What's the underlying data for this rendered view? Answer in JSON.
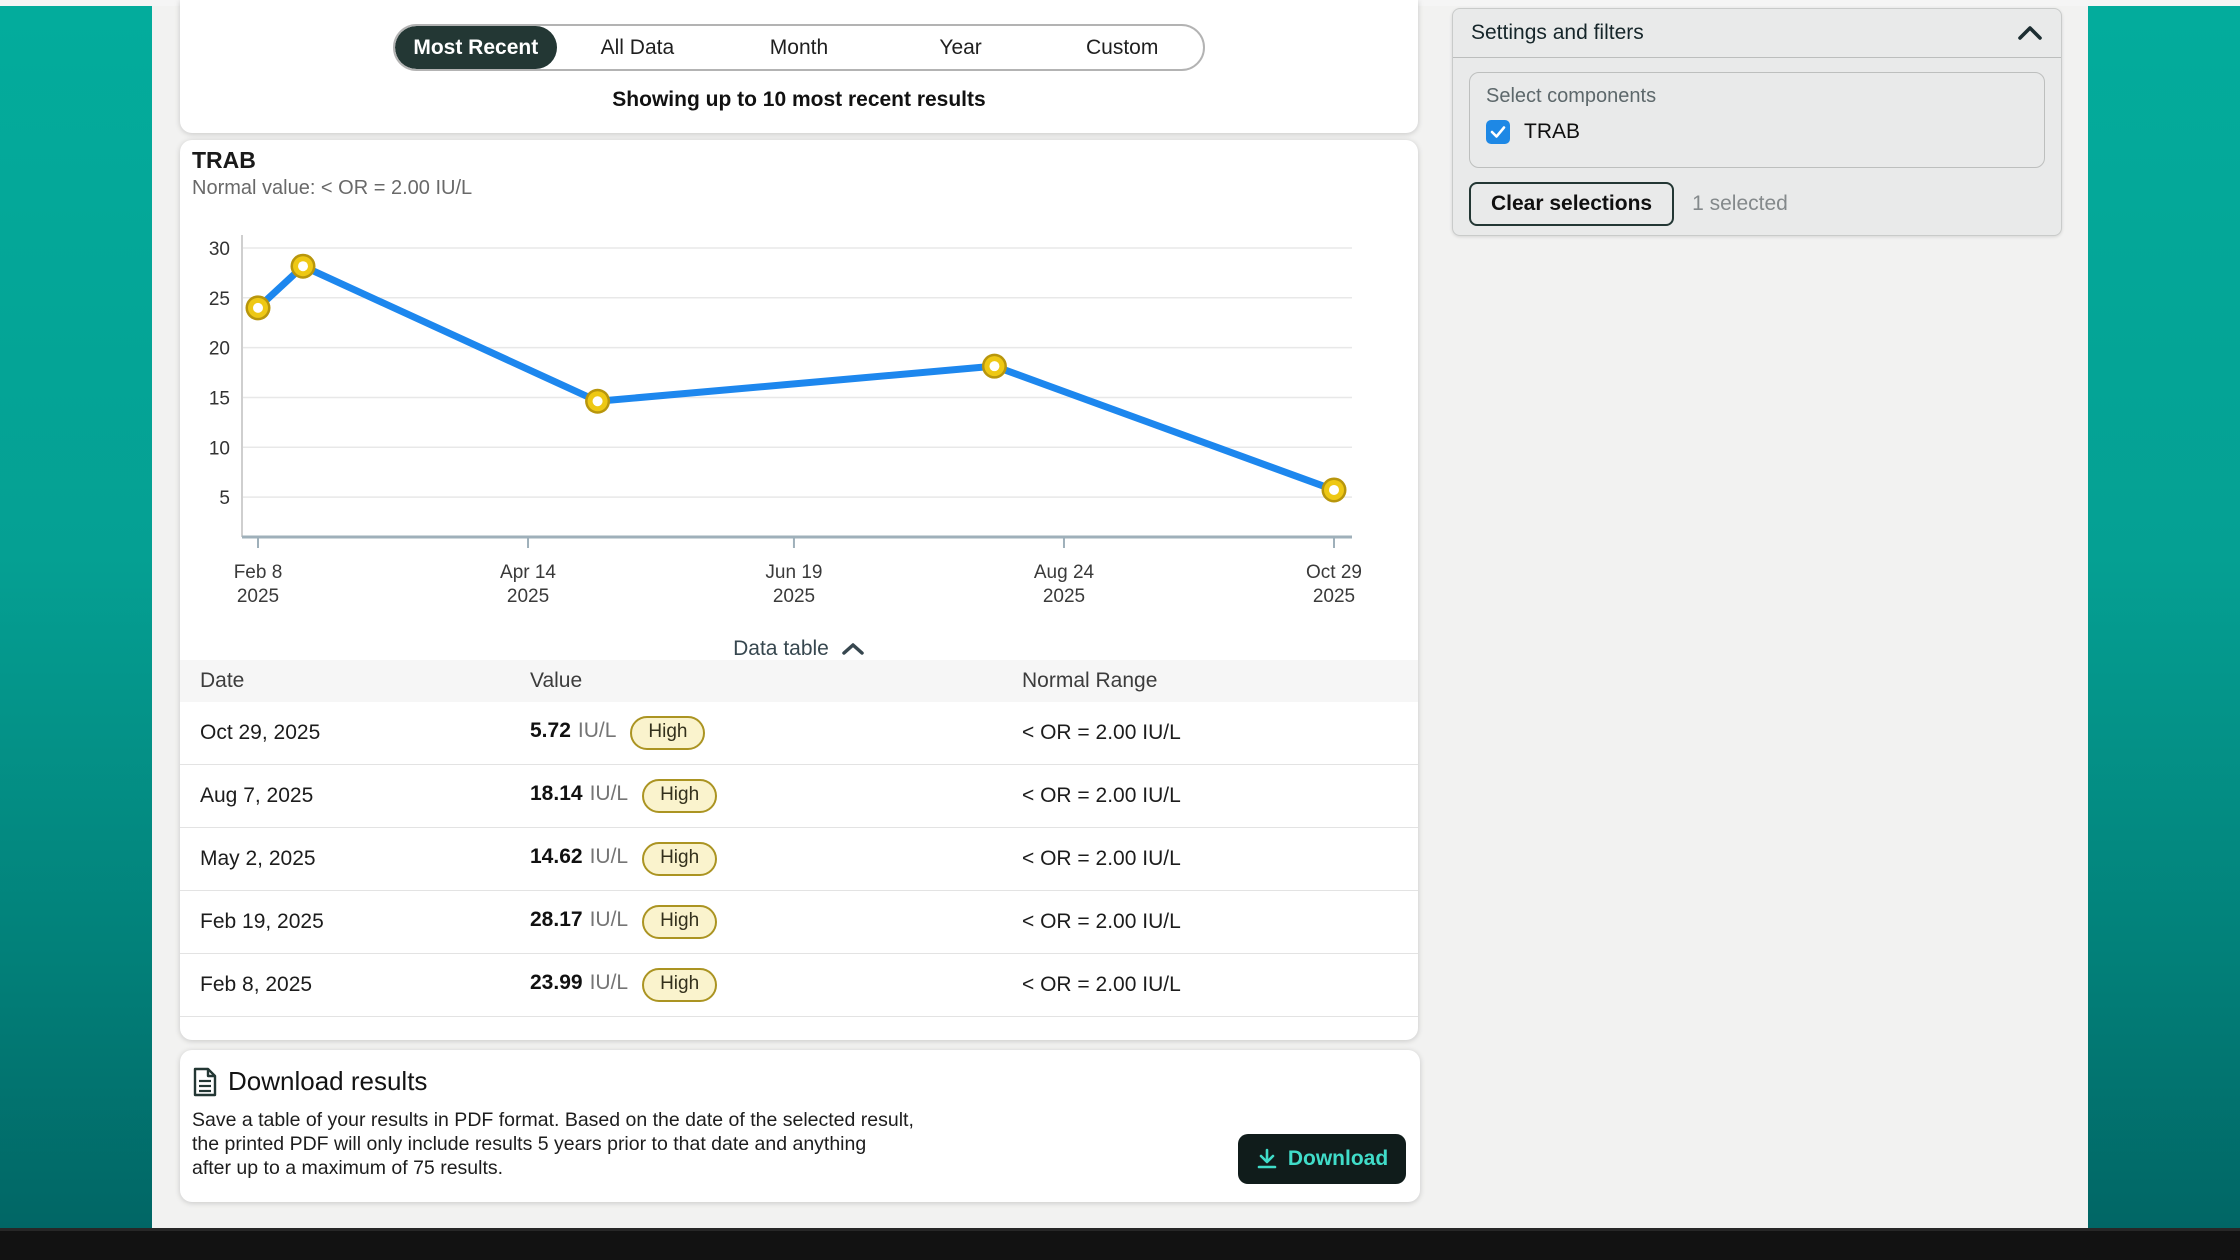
{
  "colors": {
    "brand_teal": "#03ac9c",
    "brand_teal_dark": "#016665",
    "selected_tab_bg": "#233734",
    "line_blue": "#1d87ee",
    "marker_gold": "#eec814",
    "marker_gold_dark": "#b8960c",
    "high_badge_bg": "#faf3cd",
    "high_badge_border": "#ab9422",
    "checkbox_blue": "#1e88e5",
    "download_button_bg": "#101c1b",
    "download_button_text": "#40dcc9"
  },
  "tabs": {
    "items": [
      "Most Recent",
      "All Data",
      "Month",
      "Year",
      "Custom"
    ],
    "selected_index": 0,
    "subtitle": "Showing up to 10 most recent results"
  },
  "chart_card": {
    "title": "TRAB",
    "normal_value": "Normal value: < OR = 2.00 IU/L",
    "data_table_toggle": "Data table"
  },
  "chart_data": {
    "type": "line",
    "title": "TRAB",
    "unit": "IU/L",
    "xlabel": "",
    "ylabel": "",
    "ylim": [
      1,
      31.3
    ],
    "y_ticks": [
      5,
      10,
      15,
      20,
      25,
      30
    ],
    "x_domain_days": [
      0,
      263
    ],
    "x_ticks": [
      {
        "label": "Feb 8",
        "year": "2025",
        "day": 0
      },
      {
        "label": "Apr 14",
        "year": "2025",
        "day": 66
      },
      {
        "label": "Jun 19",
        "year": "2025",
        "day": 131
      },
      {
        "label": "Aug 24",
        "year": "2025",
        "day": 197
      },
      {
        "label": "Oct 29",
        "year": "2025",
        "day": 263
      }
    ],
    "points": [
      {
        "date": "Feb 8, 2025",
        "day": 0,
        "value": 23.99
      },
      {
        "date": "Feb 19, 2025",
        "day": 11,
        "value": 28.17
      },
      {
        "date": "May 2, 2025",
        "day": 83,
        "value": 14.62
      },
      {
        "date": "Aug 7, 2025",
        "day": 180,
        "value": 18.14
      },
      {
        "date": "Oct 29, 2025",
        "day": 263,
        "value": 5.72
      }
    ],
    "grid": true,
    "legend": false
  },
  "data_table": {
    "columns": [
      "Date",
      "Value",
      "Normal Range"
    ],
    "rows": [
      {
        "date": "Oct 29, 2025",
        "value": "5.72",
        "unit": "IU/L",
        "flag": "High",
        "normal_range": "< OR = 2.00 IU/L"
      },
      {
        "date": "Aug 7, 2025",
        "value": "18.14",
        "unit": "IU/L",
        "flag": "High",
        "normal_range": "< OR = 2.00 IU/L"
      },
      {
        "date": "May 2, 2025",
        "value": "14.62",
        "unit": "IU/L",
        "flag": "High",
        "normal_range": "< OR = 2.00 IU/L"
      },
      {
        "date": "Feb 19, 2025",
        "value": "28.17",
        "unit": "IU/L",
        "flag": "High",
        "normal_range": "< OR = 2.00 IU/L"
      },
      {
        "date": "Feb 8, 2025",
        "value": "23.99",
        "unit": "IU/L",
        "flag": "High",
        "normal_range": "< OR = 2.00 IU/L"
      }
    ]
  },
  "download": {
    "title": "Download results",
    "body": "Save a table of your results in PDF format. Based on the date of the selected result,\nthe printed PDF will only include results 5 years prior to that date and anything\nafter up to a maximum of 75 results.",
    "button_label": "Download"
  },
  "settings": {
    "title": "Settings and filters",
    "select_components_label": "Select components",
    "components": [
      {
        "label": "TRAB",
        "checked": true
      }
    ],
    "clear_button_label": "Clear selections",
    "selected_count": "1 selected"
  }
}
